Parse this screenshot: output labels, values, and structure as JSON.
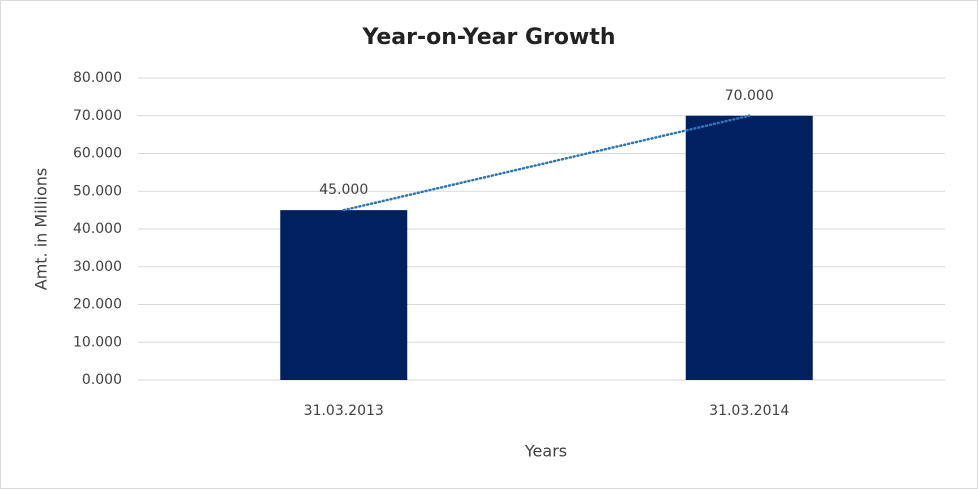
{
  "chart_data": {
    "type": "bar",
    "title": "Year-on-Year Growth",
    "x_label": "Years",
    "y_label": "Amt. in Millions",
    "categories": [
      "31.03.2013",
      "31.03.2014"
    ],
    "values": [
      45,
      70
    ],
    "value_labels": [
      "45.000",
      "70.000"
    ],
    "color": "#002060",
    "trendline": true,
    "trendline_color": "#2e75b6",
    "ylim": [
      0,
      80
    ],
    "yticks": [
      {
        "value": 0,
        "label": "0.000"
      },
      {
        "value": 10,
        "label": "10.000"
      },
      {
        "value": 20,
        "label": "20.000"
      },
      {
        "value": 30,
        "label": "30.000"
      },
      {
        "value": 40,
        "label": "40.000"
      },
      {
        "value": 50,
        "label": "50.000"
      },
      {
        "value": 60,
        "label": "60.000"
      },
      {
        "value": 70,
        "label": "70.000"
      },
      {
        "value": 80,
        "label": "80.000"
      }
    ],
    "grid": true
  }
}
